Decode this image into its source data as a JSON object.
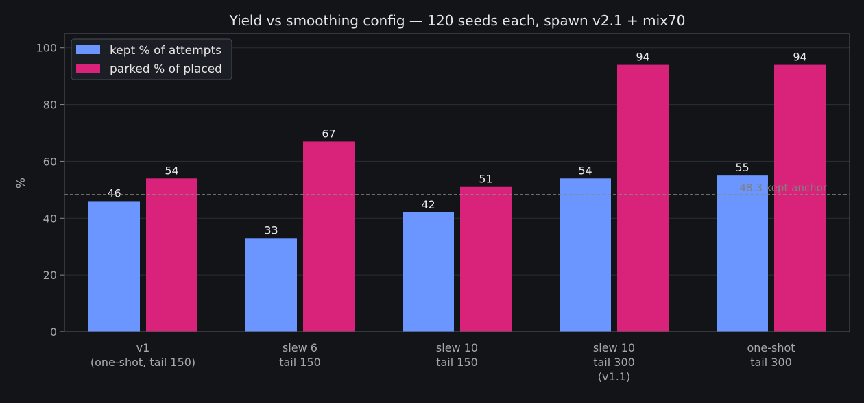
{
  "chart_data": {
    "type": "bar",
    "title": "Yield vs smoothing config — 120 seeds each, spawn v2.1 + mix70",
    "xlabel": "",
    "ylabel": "%",
    "ylim": [
      0,
      105
    ],
    "yticks": [
      0,
      20,
      40,
      60,
      80,
      100
    ],
    "grid": true,
    "legend_position": "top-left",
    "categories": [
      [
        "v1",
        "(one-shot, tail 150)"
      ],
      [
        "slew 6",
        "tail 150"
      ],
      [
        "slew 10",
        "tail 150"
      ],
      [
        "slew 10",
        "tail 300",
        "(v1.1)"
      ],
      [
        "one-shot",
        "tail 300"
      ]
    ],
    "series": [
      {
        "name": "kept % of attempts",
        "color": "#6b95ff",
        "values": [
          46,
          33,
          42,
          54,
          55
        ]
      },
      {
        "name": "parked % of placed",
        "color": "#d9237b",
        "values": [
          54,
          67,
          51,
          94,
          94
        ]
      }
    ],
    "value_labels": [
      [
        "46",
        "33",
        "42",
        "54",
        "55"
      ],
      [
        "54",
        "67",
        "51",
        "94",
        "94"
      ]
    ],
    "reference_line": {
      "value": 48.3,
      "label": "48.3 kept anchor",
      "color": "#8a8a8a"
    }
  }
}
